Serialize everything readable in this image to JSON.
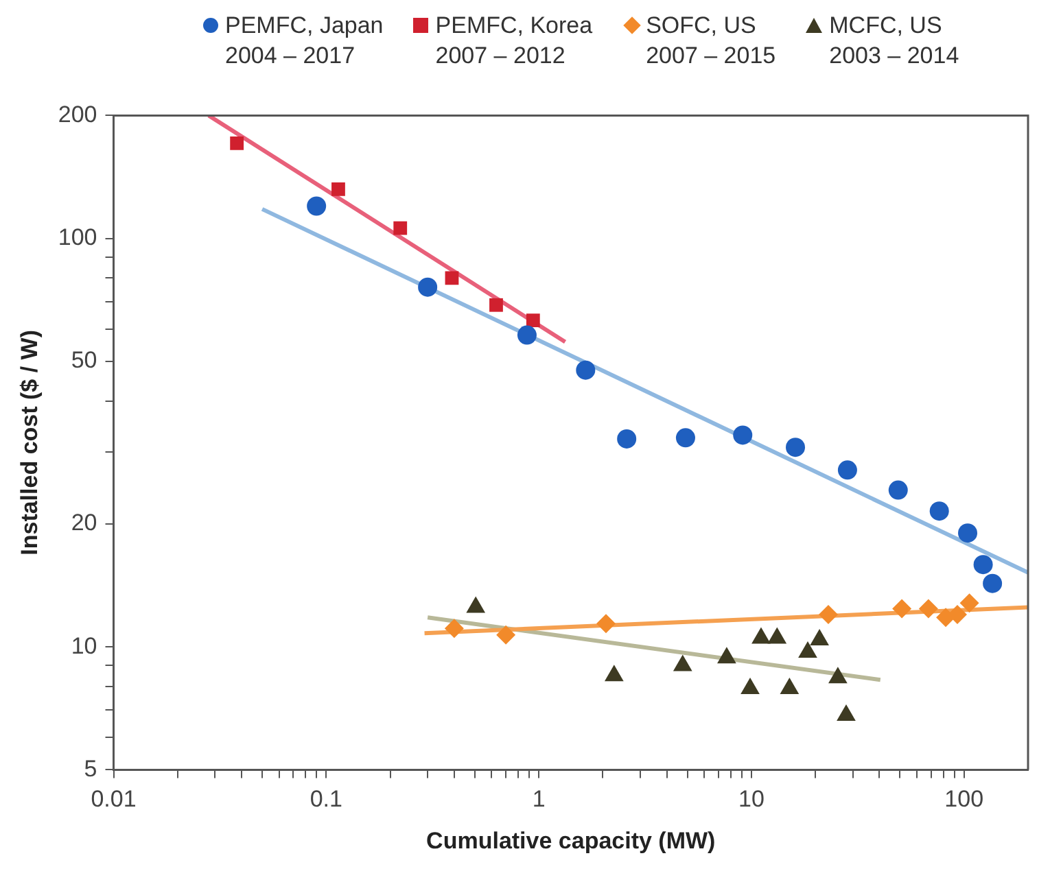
{
  "chart_data": {
    "type": "scatter",
    "xlabel": "Cumulative capacity (MW)",
    "ylabel": "Installed cost ($ / W)",
    "log": "xy",
    "legend": "top",
    "grid": false,
    "xlim": [
      0.01,
      200
    ],
    "ylim": [
      5,
      200
    ],
    "xticks": [
      0.01,
      {
        "value": 0.02,
        "label": null
      },
      {
        "value": 0.03,
        "label": null
      },
      {
        "value": 0.04,
        "label": null
      },
      {
        "value": 0.05,
        "label": null
      },
      {
        "value": 0.06,
        "label": null
      },
      {
        "value": 0.07,
        "label": null
      },
      {
        "value": 0.08,
        "label": null
      },
      {
        "value": 0.09,
        "label": null
      },
      0.1,
      {
        "value": 0.2,
        "label": null
      },
      {
        "value": 0.3,
        "label": null
      },
      {
        "value": 0.4,
        "label": null
      },
      {
        "value": 0.5,
        "label": null
      },
      {
        "value": 0.6,
        "label": null
      },
      {
        "value": 0.7,
        "label": null
      },
      {
        "value": 0.8,
        "label": null
      },
      {
        "value": 0.9,
        "label": null
      },
      1,
      {
        "value": 2,
        "label": null
      },
      {
        "value": 3,
        "label": null
      },
      {
        "value": 4,
        "label": null
      },
      {
        "value": 5,
        "label": null
      },
      {
        "value": 6,
        "label": null
      },
      {
        "value": 7,
        "label": null
      },
      {
        "value": 8,
        "label": null
      },
      {
        "value": 9,
        "label": null
      },
      10,
      {
        "value": 20,
        "label": null
      },
      {
        "value": 30,
        "label": null
      },
      {
        "value": 40,
        "label": null
      },
      {
        "value": 50,
        "label": null
      },
      {
        "value": 60,
        "label": null
      },
      {
        "value": 70,
        "label": null
      },
      {
        "value": 80,
        "label": null
      },
      {
        "value": 90,
        "label": null
      },
      100
    ],
    "yticks": [
      5,
      {
        "value": 6,
        "label": null
      },
      {
        "value": 7,
        "label": null
      },
      {
        "value": 8,
        "label": null
      },
      {
        "value": 9,
        "label": null
      },
      10,
      20,
      {
        "value": 30,
        "label": null
      },
      {
        "value": 40,
        "label": null
      },
      50,
      {
        "value": 60,
        "label": null
      },
      {
        "value": 70,
        "label": null
      },
      {
        "value": 80,
        "label": null
      },
      {
        "value": 90,
        "label": null
      },
      100,
      200
    ],
    "series": [
      {
        "name": "PEMFC, Japan\n2004 – 2017",
        "marker": "circle",
        "color": "#1f5fbf",
        "x": [
          0.09,
          0.3,
          0.88,
          1.66,
          2.59,
          4.9,
          9.1,
          16.1,
          28.3,
          49,
          76.5,
          104,
          123,
          136
        ],
        "values": [
          120,
          76,
          58,
          47.6,
          32.3,
          32.5,
          33,
          30.8,
          27.1,
          24.2,
          21.5,
          19,
          15.9,
          14.3
        ]
      },
      {
        "name": "PEMFC, Korea\n2007 – 2012",
        "marker": "square",
        "color": "#d0202e",
        "x": [
          0.038,
          0.114,
          0.223,
          0.39,
          0.63,
          0.94
        ],
        "values": [
          171,
          132,
          106,
          80,
          68.7,
          63
        ]
      },
      {
        "name": "SOFC, US\n2007 – 2015",
        "marker": "diamond",
        "color": "#f28a2a",
        "x": [
          0.4,
          0.7,
          2.07,
          23,
          51,
          68,
          82,
          93,
          106
        ],
        "values": [
          11.1,
          10.7,
          11.4,
          12,
          12.4,
          12.4,
          11.8,
          12,
          12.8
        ]
      },
      {
        "name": "MCFC, US\n2003 – 2014",
        "marker": "triangle",
        "color": "#3d3a22",
        "x": [
          0.505,
          2.26,
          4.75,
          7.65,
          9.86,
          11.1,
          13.2,
          15.1,
          18.4,
          20.9,
          25.5,
          27.9
        ],
        "values": [
          12.5,
          8.5,
          9,
          9.4,
          7.9,
          10.5,
          10.5,
          7.9,
          9.7,
          10.4,
          8.4,
          6.8
        ]
      },
      {
        "type": "line",
        "marker": "none",
        "line_style": "solid",
        "color": "#8fb8e0",
        "x": [
          0.05,
          200
        ],
        "values": [
          118,
          15.2
        ]
      },
      {
        "type": "line",
        "marker": "none",
        "line_style": "solid",
        "color": "#e8607a",
        "x": [
          0.028,
          1.33
        ],
        "values": [
          200,
          55.8
        ]
      },
      {
        "type": "line",
        "marker": "none",
        "line_style": "solid",
        "color": "#f5a050",
        "x": [
          0.29,
          200
        ],
        "values": [
          10.8,
          12.5
        ]
      },
      {
        "type": "line",
        "marker": "none",
        "line_style": "solid",
        "color": "#b8b898",
        "x": [
          0.3,
          40.4
        ],
        "values": [
          11.8,
          8.3
        ]
      }
    ]
  }
}
